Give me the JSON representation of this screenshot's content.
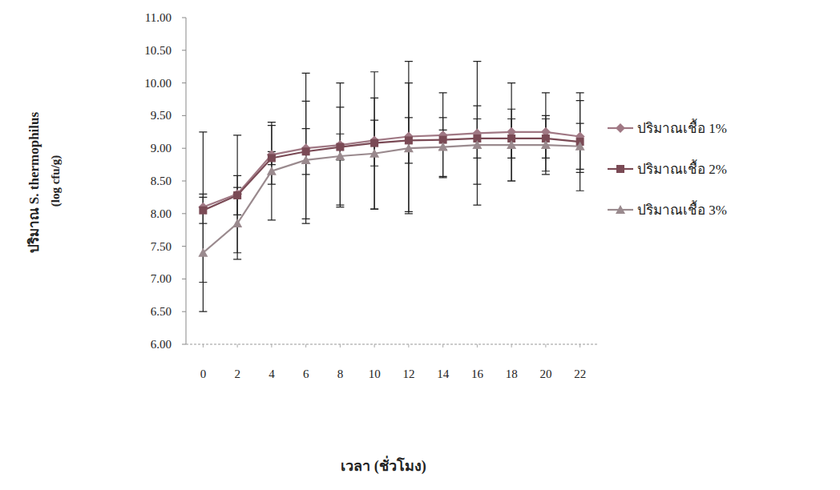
{
  "chart_data": {
    "type": "line",
    "xlabel": "เวลา (ชั่วโมง)",
    "ylabel": "ปริมาณ S. thermophilus (log cfu/g)",
    "x": [
      0,
      2,
      4,
      6,
      8,
      10,
      12,
      14,
      16,
      18,
      20,
      22
    ],
    "xlim": [
      -1,
      23
    ],
    "xticks": [
      0,
      2,
      4,
      6,
      8,
      10,
      12,
      14,
      16,
      18,
      20,
      22
    ],
    "ylim": [
      6,
      11
    ],
    "yticks": [
      {
        "value": 6,
        "label": "6.00"
      },
      {
        "value": 6.5,
        "label": "6.50"
      },
      {
        "value": 7,
        "label": "7.00"
      },
      {
        "value": 7.5,
        "label": "7.50"
      },
      {
        "value": 8,
        "label": "8.00"
      },
      {
        "value": 8.5,
        "label": "8.50"
      },
      {
        "value": 9,
        "label": "9.00"
      },
      {
        "value": 9.5,
        "label": "9.50"
      },
      {
        "value": 10,
        "label": "10.00"
      },
      {
        "value": 10.5,
        "label": "10.50"
      },
      {
        "value": 11,
        "label": "11.00"
      }
    ],
    "grid": false,
    "legend": "right",
    "series": [
      {
        "name": "ปริมาณเชื้อ 1%",
        "color": "#a07884",
        "marker": "diamond",
        "values": [
          8.1,
          8.3,
          8.9,
          9.0,
          9.05,
          9.12,
          9.18,
          9.2,
          9.23,
          9.25,
          9.25,
          9.18
        ],
        "errors": [
          1.15,
          0.9,
          0.45,
          1.15,
          0.95,
          1.05,
          1.15,
          0.65,
          1.1,
          0.75,
          0.6,
          0.55
        ]
      },
      {
        "name": "ปริมาณเชื้อ 2%",
        "color": "#7a4a55",
        "marker": "square",
        "values": [
          8.05,
          8.28,
          8.85,
          8.95,
          9.02,
          9.08,
          9.12,
          9.13,
          9.15,
          9.15,
          9.15,
          9.1
        ],
        "errors": [
          0.2,
          0.3,
          0.1,
          0.35,
          0.2,
          0.35,
          0.35,
          0.15,
          0.3,
          0.3,
          0.3,
          0.75
        ]
      },
      {
        "name": "ปริมาณเชื้อ 3%",
        "color": "#9a8a8e",
        "marker": "triangle",
        "values": [
          7.4,
          7.85,
          8.65,
          8.82,
          8.88,
          8.92,
          9.0,
          9.02,
          9.05,
          9.05,
          9.05,
          9.03
        ],
        "errors": [
          0.9,
          0.55,
          0.75,
          0.9,
          0.75,
          0.85,
          1.0,
          0.45,
          0.6,
          0.55,
          0.45,
          0.35
        ]
      }
    ]
  }
}
